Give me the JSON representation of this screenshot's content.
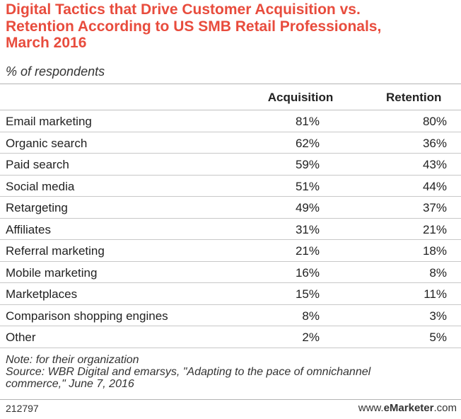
{
  "chart_data": {
    "type": "table",
    "title_lines": [
      "Digital Tactics that Drive Customer Acquisition vs.",
      "Retention According to US SMB Retail Professionals,",
      "March 2016"
    ],
    "subtitle": "% of respondents",
    "columns": [
      "Acquisition",
      "Retention"
    ],
    "rows": [
      {
        "label": "Email marketing",
        "values": [
          "81%",
          "80%"
        ]
      },
      {
        "label": "Organic search",
        "values": [
          "62%",
          "36%"
        ]
      },
      {
        "label": "Paid search",
        "values": [
          "59%",
          "43%"
        ]
      },
      {
        "label": "Social media",
        "values": [
          "51%",
          "44%"
        ]
      },
      {
        "label": "Retargeting",
        "values": [
          "49%",
          "37%"
        ]
      },
      {
        "label": "Affiliates",
        "values": [
          "31%",
          "21%"
        ]
      },
      {
        "label": "Referral marketing",
        "values": [
          "21%",
          "18%"
        ]
      },
      {
        "label": "Mobile marketing",
        "values": [
          "16%",
          "8%"
        ]
      },
      {
        "label": "Marketplaces",
        "values": [
          "15%",
          "11%"
        ]
      },
      {
        "label": "Comparison shopping engines",
        "values": [
          "8%",
          "3%"
        ]
      },
      {
        "label": "Other",
        "values": [
          "2%",
          "5%"
        ]
      }
    ],
    "note_lines": [
      "Note: for their organization",
      "Source: WBR Digital and emarsys, \"Adapting to the pace of omnichannel",
      "commerce,\" June 7, 2016"
    ],
    "chart_id": "212797",
    "brand_prefix": "www.",
    "brand_name": "eMarketer",
    "brand_suffix": ".com",
    "colors": {
      "title": "#e84c3d",
      "text": "#222222"
    }
  }
}
